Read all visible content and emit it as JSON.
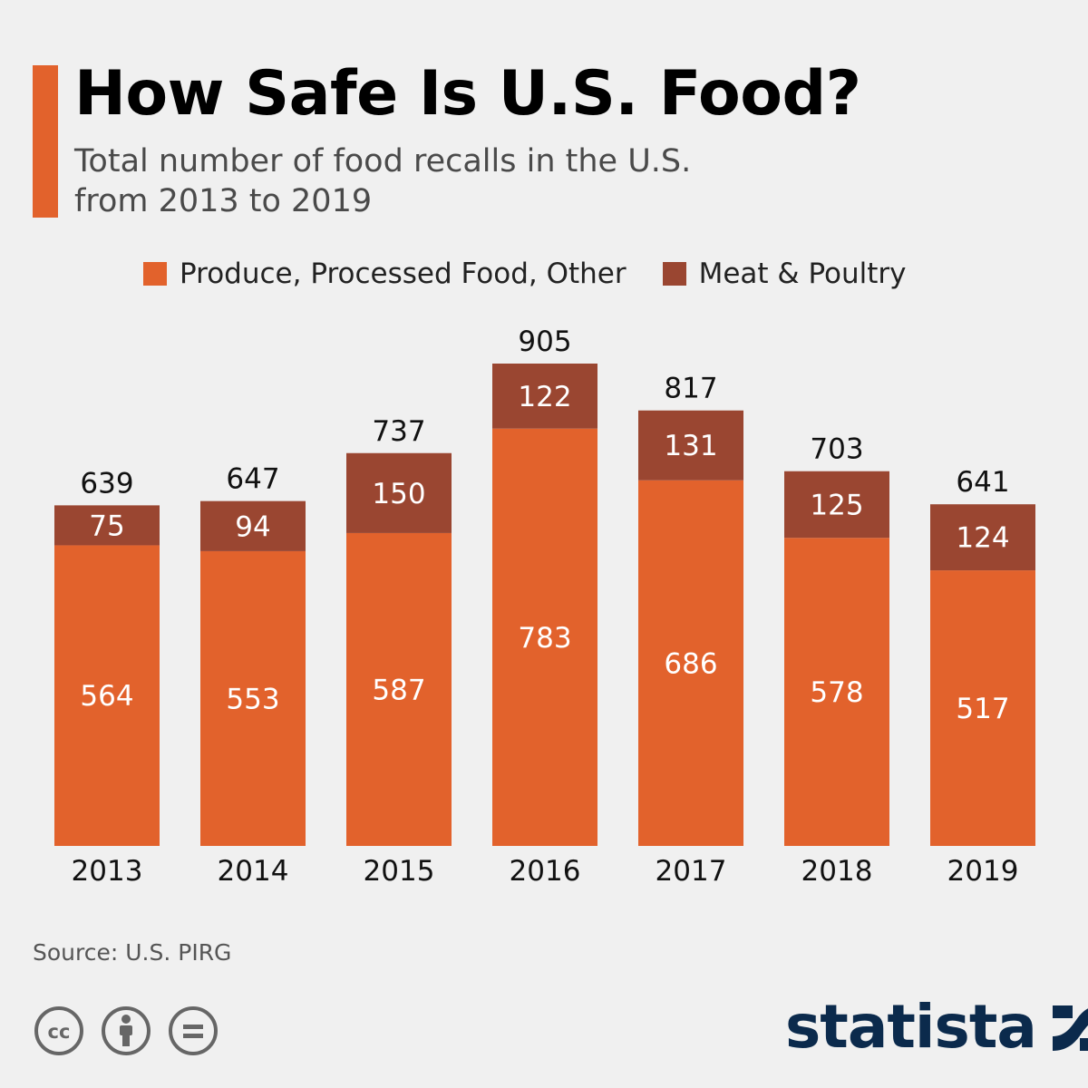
{
  "header": {
    "title": "How Safe Is U.S. Food?",
    "subtitle_lines": [
      "Total number of food recalls in the U.S.",
      "from 2013 to 2019"
    ]
  },
  "colors": {
    "accent": "#e2622c",
    "produce": "#e2622c",
    "meat": "#9a4631",
    "brand": "#0b2a4c"
  },
  "chart_data": {
    "type": "bar",
    "stacked": true,
    "title": "How Safe Is U.S. Food?",
    "subtitle": "Total number of food recalls in the U.S. from 2013 to 2019",
    "categories": [
      "2013",
      "2014",
      "2015",
      "2016",
      "2017",
      "2018",
      "2019"
    ],
    "series": [
      {
        "name": "Produce, Processed Food, Other",
        "values": [
          564,
          553,
          587,
          783,
          686,
          578,
          517
        ]
      },
      {
        "name": "Meat & Poultry",
        "values": [
          75,
          94,
          150,
          122,
          131,
          125,
          124
        ]
      }
    ],
    "totals": [
      639,
      647,
      737,
      905,
      817,
      703,
      641
    ],
    "ylim": [
      0,
      905
    ],
    "grid": false,
    "legend": "top",
    "data_labels": true
  },
  "footer": {
    "source": "Source: U.S. PIRG",
    "brand": "statista",
    "icons": [
      "cc-icon",
      "by-icon",
      "nd-icon"
    ]
  }
}
